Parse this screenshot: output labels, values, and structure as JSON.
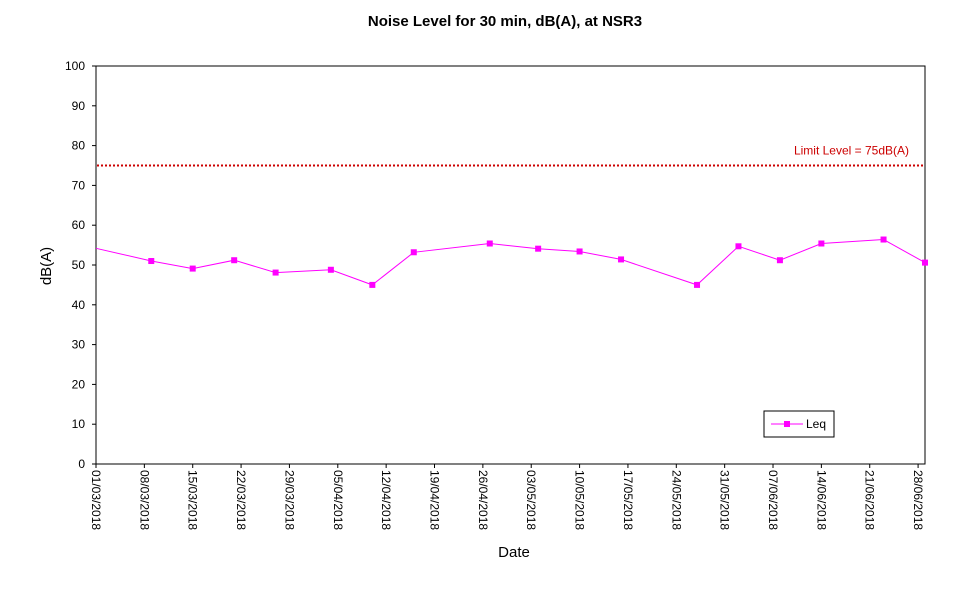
{
  "chart_data": {
    "type": "line",
    "title": "Noise Level for 30 min, dB(A), at NSR3",
    "xlabel": "Date",
    "ylabel": "dB(A)",
    "ylim": [
      0,
      100
    ],
    "yticks": [
      0,
      10,
      20,
      30,
      40,
      50,
      60,
      70,
      80,
      90,
      100
    ],
    "xlim": [
      "01/03/2018",
      "29/06/2018"
    ],
    "xticks": [
      "01/03/2018",
      "08/03/2018",
      "15/03/2018",
      "22/03/2018",
      "29/03/2018",
      "05/04/2018",
      "12/04/2018",
      "19/04/2018",
      "26/04/2018",
      "03/05/2018",
      "10/05/2018",
      "17/05/2018",
      "24/05/2018",
      "31/05/2018",
      "07/06/2018",
      "14/06/2018",
      "21/06/2018",
      "28/06/2018"
    ],
    "series": [
      {
        "name": "Leq",
        "color": "#ff00ff",
        "marker": "square",
        "points": [
          {
            "x": "01/03/2018",
            "y": 54.2
          },
          {
            "x": "09/03/2018",
            "y": 51.0
          },
          {
            "x": "15/03/2018",
            "y": 49.1
          },
          {
            "x": "21/03/2018",
            "y": 51.2
          },
          {
            "x": "27/03/2018",
            "y": 48.1
          },
          {
            "x": "04/04/2018",
            "y": 48.8
          },
          {
            "x": "10/04/2018",
            "y": 45.0
          },
          {
            "x": "16/04/2018",
            "y": 53.2
          },
          {
            "x": "27/04/2018",
            "y": 55.4
          },
          {
            "x": "04/05/2018",
            "y": 54.1
          },
          {
            "x": "10/05/2018",
            "y": 53.4
          },
          {
            "x": "16/05/2018",
            "y": 51.4
          },
          {
            "x": "27/05/2018",
            "y": 45.0
          },
          {
            "x": "02/06/2018",
            "y": 54.7
          },
          {
            "x": "08/06/2018",
            "y": 51.2
          },
          {
            "x": "14/06/2018",
            "y": 55.4
          },
          {
            "x": "23/06/2018",
            "y": 56.4
          },
          {
            "x": "29/06/2018",
            "y": 50.6
          }
        ]
      }
    ],
    "reference_line": {
      "label": "Limit Level  = 75dB(A)",
      "value": 75,
      "color": "#cc0000",
      "style": "dotted"
    },
    "legend": {
      "entries": [
        "Leq"
      ],
      "placement": "bottom-right"
    },
    "grid": false
  }
}
